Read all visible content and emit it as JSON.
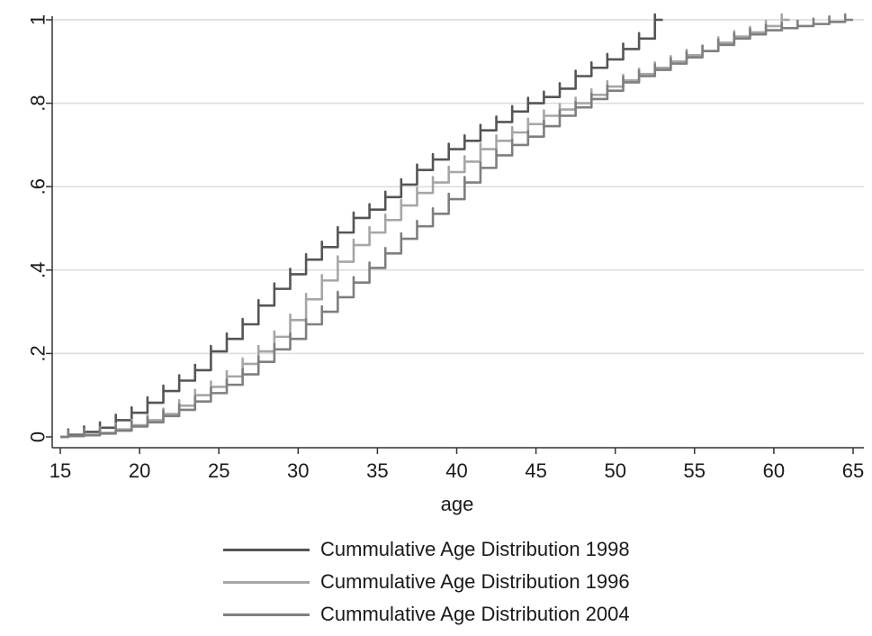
{
  "chart_data": {
    "type": "line",
    "title": "",
    "xlabel": "age",
    "ylabel": "",
    "xlim": [
      15,
      65
    ],
    "ylim": [
      0,
      1
    ],
    "xticks": [
      15,
      20,
      25,
      30,
      35,
      40,
      45,
      50,
      55,
      60,
      65
    ],
    "xtick_labels": [
      "15",
      "20",
      "25",
      "30",
      "35",
      "40",
      "45",
      "50",
      "55",
      "60",
      "65"
    ],
    "yticks": [
      0,
      0.2,
      0.4,
      0.6,
      0.8,
      1
    ],
    "ytick_labels": [
      "0",
      ".2",
      ".4",
      ".6",
      ".8",
      "1"
    ],
    "grid": "horizontal",
    "legend_position": "bottom",
    "series": [
      {
        "name": "Cummulative Age Distribution 1998",
        "color": "#555555",
        "x": [
          15,
          16,
          17,
          18,
          19,
          20,
          21,
          22,
          23,
          24,
          25,
          26,
          27,
          28,
          29,
          30,
          31,
          32,
          33,
          34,
          35,
          36,
          37,
          38,
          39,
          40,
          41,
          42,
          43,
          44,
          45,
          46,
          47,
          48,
          49,
          50,
          51,
          52,
          53
        ],
        "y": [
          0,
          0.005,
          0.012,
          0.022,
          0.04,
          0.058,
          0.082,
          0.11,
          0.135,
          0.16,
          0.205,
          0.235,
          0.27,
          0.315,
          0.355,
          0.39,
          0.425,
          0.455,
          0.49,
          0.525,
          0.545,
          0.575,
          0.605,
          0.64,
          0.665,
          0.69,
          0.71,
          0.735,
          0.755,
          0.78,
          0.8,
          0.815,
          0.835,
          0.865,
          0.885,
          0.905,
          0.93,
          0.955,
          1.0
        ]
      },
      {
        "name": "Cummulative Age Distribution 1996",
        "color": "#a6a6a6",
        "x": [
          15,
          16,
          17,
          18,
          19,
          20,
          21,
          22,
          23,
          24,
          25,
          26,
          27,
          28,
          29,
          30,
          31,
          32,
          33,
          34,
          35,
          36,
          37,
          38,
          39,
          40,
          41,
          42,
          43,
          44,
          45,
          46,
          47,
          48,
          49,
          50,
          51,
          52,
          53,
          54,
          55,
          56,
          57,
          58,
          59,
          60,
          61
        ],
        "y": [
          0,
          0.002,
          0.005,
          0.01,
          0.018,
          0.028,
          0.04,
          0.055,
          0.075,
          0.1,
          0.12,
          0.145,
          0.175,
          0.205,
          0.24,
          0.28,
          0.33,
          0.375,
          0.42,
          0.46,
          0.49,
          0.52,
          0.555,
          0.585,
          0.61,
          0.635,
          0.66,
          0.69,
          0.71,
          0.73,
          0.75,
          0.77,
          0.785,
          0.8,
          0.82,
          0.84,
          0.855,
          0.87,
          0.885,
          0.9,
          0.915,
          0.925,
          0.945,
          0.96,
          0.97,
          0.985,
          1.0
        ]
      },
      {
        "name": "Cummulative Age Distribution 2004",
        "color": "#7f7f7f",
        "x": [
          15,
          16,
          17,
          18,
          19,
          20,
          21,
          22,
          23,
          24,
          25,
          26,
          27,
          28,
          29,
          30,
          31,
          32,
          33,
          34,
          35,
          36,
          37,
          38,
          39,
          40,
          41,
          42,
          43,
          44,
          45,
          46,
          47,
          48,
          49,
          50,
          51,
          52,
          53,
          54,
          55,
          56,
          57,
          58,
          59,
          60,
          61,
          62,
          63,
          64,
          65
        ],
        "y": [
          0,
          0.002,
          0.004,
          0.008,
          0.015,
          0.025,
          0.035,
          0.05,
          0.065,
          0.085,
          0.105,
          0.125,
          0.15,
          0.18,
          0.21,
          0.235,
          0.27,
          0.3,
          0.335,
          0.37,
          0.405,
          0.44,
          0.475,
          0.505,
          0.535,
          0.57,
          0.61,
          0.645,
          0.675,
          0.7,
          0.72,
          0.745,
          0.77,
          0.79,
          0.81,
          0.83,
          0.85,
          0.865,
          0.88,
          0.895,
          0.91,
          0.925,
          0.94,
          0.955,
          0.965,
          0.975,
          0.98,
          0.985,
          0.99,
          0.995,
          1.0
        ]
      }
    ]
  }
}
